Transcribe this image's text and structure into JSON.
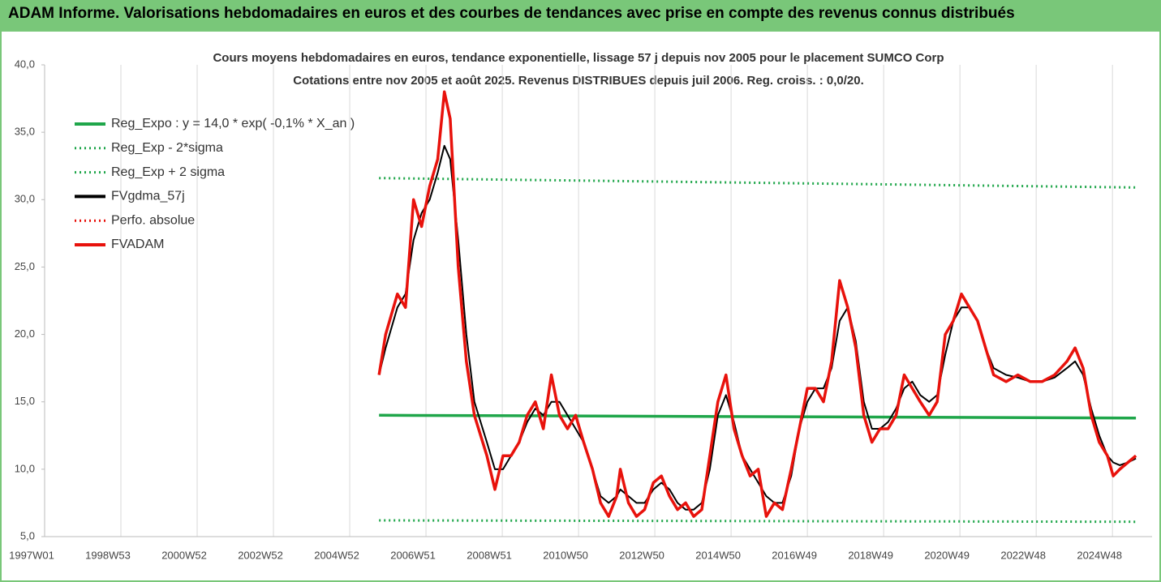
{
  "header": {
    "title": "ADAM Informe. Valorisations hebdomadaires en euros et des courbes de tendances avec prise en compte des revenus connus distribués"
  },
  "chart_data": {
    "type": "line",
    "title": "Cours moyens hebdomadaires en euros, tendance exponentielle, lissage 57 j depuis nov 2005 pour le placement SUMCO Corp",
    "subtitle": "Cotations entre nov 2005 et août 2025. Revenus DISTRIBUES depuis juil 2006. Reg. croiss. : 0,0/20.",
    "xlim": [
      0,
      1510
    ],
    "xticks": [
      {
        "value": 0,
        "label": "1997W01"
      },
      {
        "value": 104,
        "label": "1998W53"
      },
      {
        "value": 208,
        "label": "2000W52"
      },
      {
        "value": 312,
        "label": "2002W52"
      },
      {
        "value": 416,
        "label": "2004W52"
      },
      {
        "value": 520,
        "label": "2006W51"
      },
      {
        "value": 624,
        "label": "2008W51"
      },
      {
        "value": 728,
        "label": "2010W50"
      },
      {
        "value": 832,
        "label": "2012W50"
      },
      {
        "value": 936,
        "label": "2014W50"
      },
      {
        "value": 1040,
        "label": "2016W49"
      },
      {
        "value": 1144,
        "label": "2018W49"
      },
      {
        "value": 1248,
        "label": "2020W49"
      },
      {
        "value": 1352,
        "label": "2022W48"
      },
      {
        "value": 1456,
        "label": "2024W48"
      }
    ],
    "ylim": [
      5,
      40
    ],
    "yticks": [
      {
        "value": 5,
        "label": "5,0"
      },
      {
        "value": 10,
        "label": "10,0"
      },
      {
        "value": 15,
        "label": "15,0"
      },
      {
        "value": 20,
        "label": "20,0"
      },
      {
        "value": 25,
        "label": "25,0"
      },
      {
        "value": 30,
        "label": "30,0"
      },
      {
        "value": 35,
        "label": "35,0"
      },
      {
        "value": 40,
        "label": "40,0"
      }
    ],
    "grid_x": true,
    "x": [
      456,
      465,
      481,
      492,
      503,
      514,
      525,
      536,
      545,
      553,
      564,
      575,
      586,
      603,
      614,
      625,
      636,
      647,
      658,
      669,
      680,
      691,
      702,
      713,
      724,
      735,
      747,
      758,
      769,
      780,
      785,
      796,
      807,
      818,
      830,
      841,
      852,
      863,
      874,
      885,
      896,
      907,
      918,
      929,
      940,
      951,
      962,
      973,
      984,
      995,
      1006,
      1018,
      1029,
      1040,
      1051,
      1062,
      1073,
      1084,
      1095,
      1106,
      1117,
      1128,
      1139,
      1150,
      1161,
      1172,
      1183,
      1194,
      1206,
      1217,
      1228,
      1239,
      1250,
      1261,
      1272,
      1283,
      1294,
      1311,
      1327,
      1344,
      1360,
      1377,
      1394,
      1405,
      1416,
      1427,
      1438,
      1449,
      1457,
      1466,
      1477,
      1488
    ],
    "series": [
      {
        "name": "Reg_Expo : y = 14,0 * exp( -0,1% *  X_an )",
        "color": "#1fa64a",
        "style": "solid",
        "x": [
          456,
          1488
        ],
        "values": [
          14.0,
          13.8
        ]
      },
      {
        "name": "Reg_Exp - 2*sigma",
        "color": "#1fa64a",
        "style": "dotted",
        "x": [
          456,
          1488
        ],
        "values": [
          6.2,
          6.1
        ]
      },
      {
        "name": "Reg_Exp + 2 sigma",
        "color": "#1fa64a",
        "style": "dotted",
        "x": [
          456,
          1488
        ],
        "values": [
          31.6,
          30.9
        ]
      },
      {
        "name": "FVgdma_57j",
        "color": "#000000",
        "style": "solid",
        "values": [
          17,
          19,
          22,
          23,
          27,
          29,
          30,
          32,
          34,
          33,
          27,
          20,
          15,
          12,
          10,
          10,
          11,
          12,
          13.5,
          14.5,
          14,
          15,
          15,
          14,
          13,
          12,
          10,
          8,
          7.5,
          8,
          8.5,
          8,
          7.5,
          7.5,
          8.5,
          9,
          8.5,
          7.5,
          7,
          7,
          7.5,
          10,
          14,
          15.5,
          13.5,
          11,
          10,
          9,
          8,
          7.5,
          7.5,
          9.5,
          13,
          15,
          16,
          16,
          17.5,
          21,
          22,
          19.5,
          15,
          13,
          13,
          13.5,
          14.5,
          16,
          16.5,
          15.5,
          15,
          15.5,
          18.5,
          21,
          22,
          22,
          21,
          19,
          17.5,
          17,
          16.8,
          16.5,
          16.5,
          16.8,
          17.5,
          18,
          17,
          14.5,
          12.5,
          11,
          10.5,
          10.3,
          10.5,
          10.8
        ]
      },
      {
        "name": "Perfo. absolue",
        "color": "#e8120c",
        "style": "dotted",
        "x": [],
        "values": []
      },
      {
        "name": "FVADAM",
        "color": "#e8120c",
        "style": "solid",
        "values": [
          17,
          20,
          23,
          22,
          30,
          28,
          31,
          33,
          38,
          36,
          25,
          18,
          14,
          11,
          8.5,
          11,
          11,
          12,
          14,
          15,
          13,
          17,
          14,
          13,
          14,
          12,
          10,
          7.5,
          6.5,
          8,
          10,
          7.5,
          6.5,
          7,
          9,
          9.5,
          8,
          7,
          7.5,
          6.5,
          7,
          11,
          15,
          17,
          13,
          11,
          9.5,
          10,
          6.5,
          7.5,
          7,
          10,
          13,
          16,
          16,
          15,
          18,
          24,
          22,
          19,
          14,
          12,
          13,
          13,
          14,
          17,
          16,
          15,
          14,
          15,
          20,
          21,
          23,
          22,
          21,
          19,
          17,
          16.5,
          17,
          16.5,
          16.5,
          17,
          18,
          19,
          17.5,
          14,
          12,
          11,
          9.5,
          10,
          10.5,
          11
        ]
      }
    ]
  }
}
